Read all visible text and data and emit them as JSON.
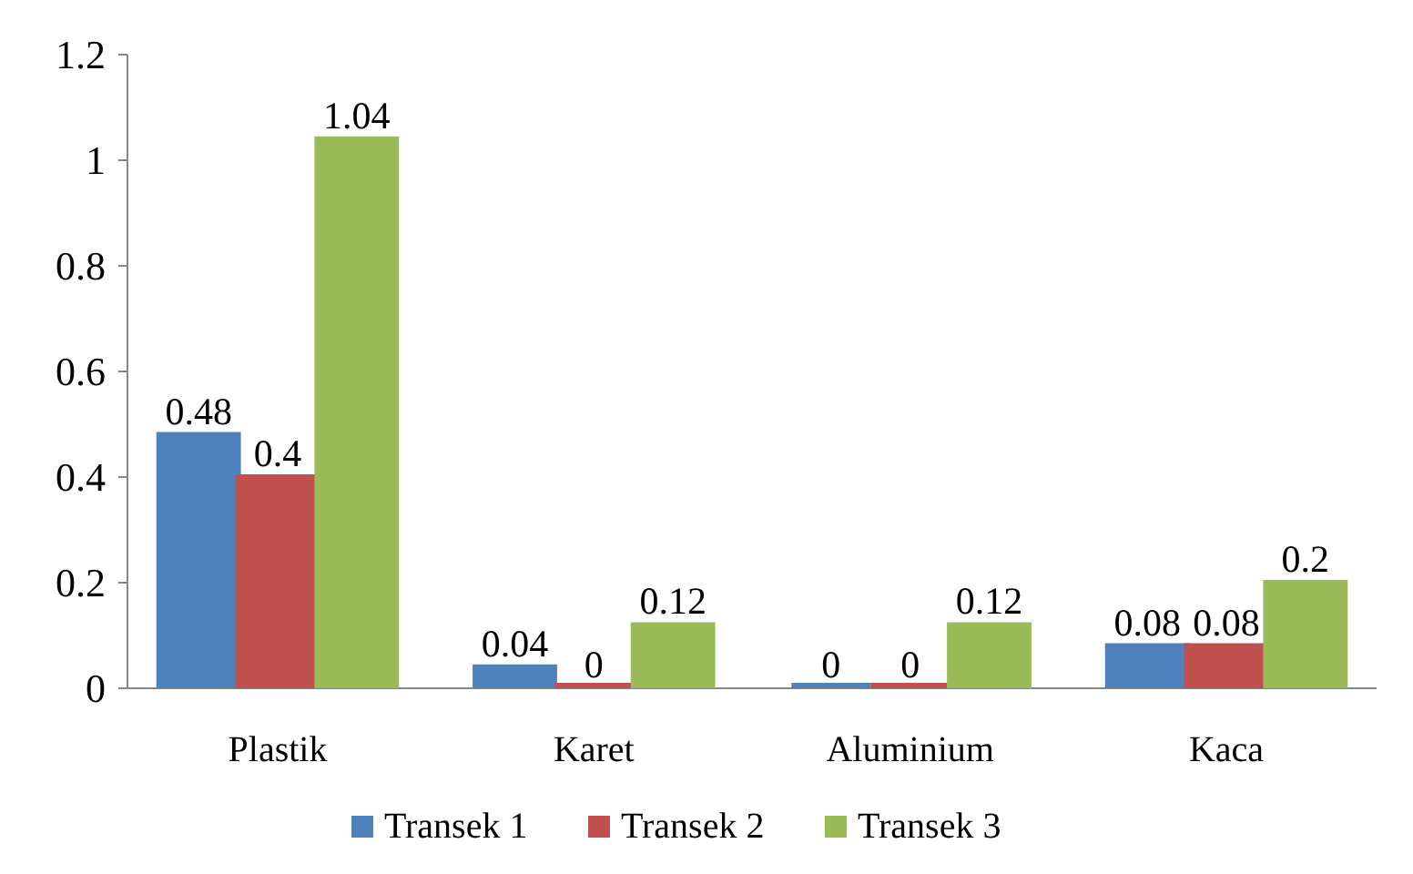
{
  "chart_data": {
    "type": "bar",
    "categories": [
      "Plastik",
      "Karet",
      "Aluminium",
      "Kaca"
    ],
    "series": [
      {
        "name": "Transek 1",
        "color": "#4f81bd",
        "values": [
          0.48,
          0.04,
          0,
          0.08
        ]
      },
      {
        "name": "Transek 2",
        "color": "#c0504d",
        "values": [
          0.4,
          0,
          0,
          0.08
        ]
      },
      {
        "name": "Transek 3",
        "color": "#9bbb59",
        "values": [
          1.04,
          0.12,
          0.12,
          0.2
        ]
      }
    ],
    "ylim": [
      0,
      1.2
    ],
    "yticks": [
      0,
      0.2,
      0.4,
      0.6,
      0.8,
      1,
      1.2
    ],
    "data_labels": true,
    "legend": "bottom",
    "grid": false
  }
}
